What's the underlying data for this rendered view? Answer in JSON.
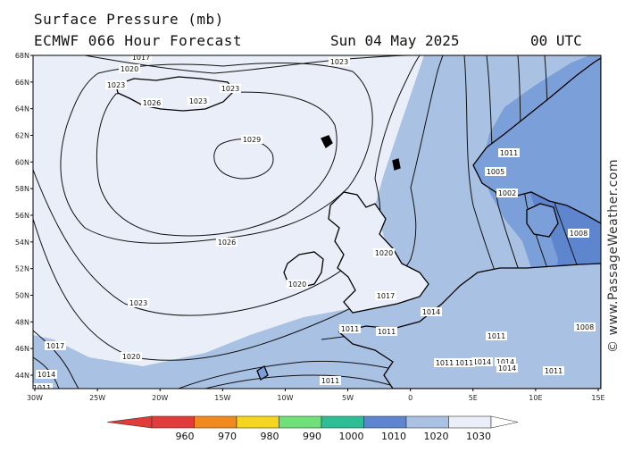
{
  "title_line1": "Surface Pressure (mb)",
  "title_line2": "ECMWF 066 Hour Forecast",
  "date": "Sun 04 May 2025",
  "time": "00 UTC",
  "watermark": "© www.PassageWeather.com",
  "lat_labels": [
    "68N",
    "66N",
    "64N",
    "62N",
    "60N",
    "58N",
    "56N",
    "54N",
    "52N",
    "50N",
    "48N",
    "46N",
    "44N"
  ],
  "lon_labels": [
    "30W",
    "25W",
    "20W",
    "15W",
    "10W",
    "5W",
    "0",
    "5E",
    "10E",
    "15E"
  ],
  "isobar_labels": [
    "1017",
    "1020",
    "1023",
    "1026",
    "1023",
    "1023",
    "1029",
    "1023",
    "1026",
    "1020",
    "1020",
    "1017",
    "1023",
    "1020",
    "1017",
    "1014",
    "1011",
    "1011",
    "1011",
    "1011",
    "1014",
    "1011",
    "1008",
    "1005",
    "1002",
    "1008",
    "1011",
    "1011",
    "1014",
    "1014",
    "1014",
    "1011",
    "1011",
    "1011",
    "1014",
    "1011"
  ],
  "colorbar_labels": [
    "960",
    "970",
    "980",
    "990",
    "1000",
    "1010",
    "1020",
    "1030"
  ],
  "colors": {
    "high": "#e9eef8",
    "mid": "#a9c1e2",
    "low": "#7b9fd8",
    "lowest": "#5e86cf",
    "land": "#000000"
  }
}
